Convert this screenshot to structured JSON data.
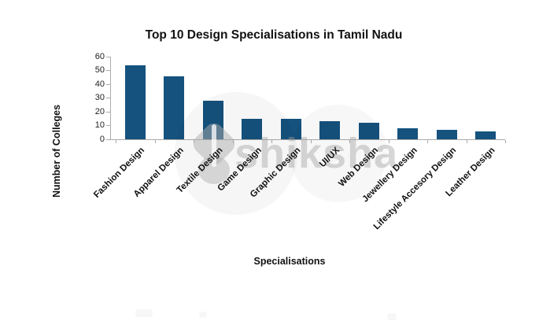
{
  "watermark": {
    "text": "shiksha"
  },
  "chart_data": {
    "type": "bar",
    "title": "Top 10 Design Specialisations in Tamil Nadu",
    "xlabel": "Specialisations",
    "ylabel": "Number of Colleges",
    "categories": [
      "Fashion Design",
      "Apparel Design",
      "Textile Design",
      "Game Design",
      "Graphic Design",
      "UI/UX",
      "Web Design",
      "Jewellery Design",
      "Lifestyle Accesory Design",
      "Leather Design"
    ],
    "values": [
      54,
      46,
      28,
      15,
      15,
      13,
      12,
      8,
      7,
      6
    ],
    "ylim": [
      0,
      60
    ],
    "ytick_step": 10,
    "yticks": [
      0,
      10,
      20,
      30,
      40,
      50,
      60
    ],
    "bar_color": "#15527E",
    "axis_color": "#ABABAB",
    "grid": false,
    "legend_position": "none"
  }
}
